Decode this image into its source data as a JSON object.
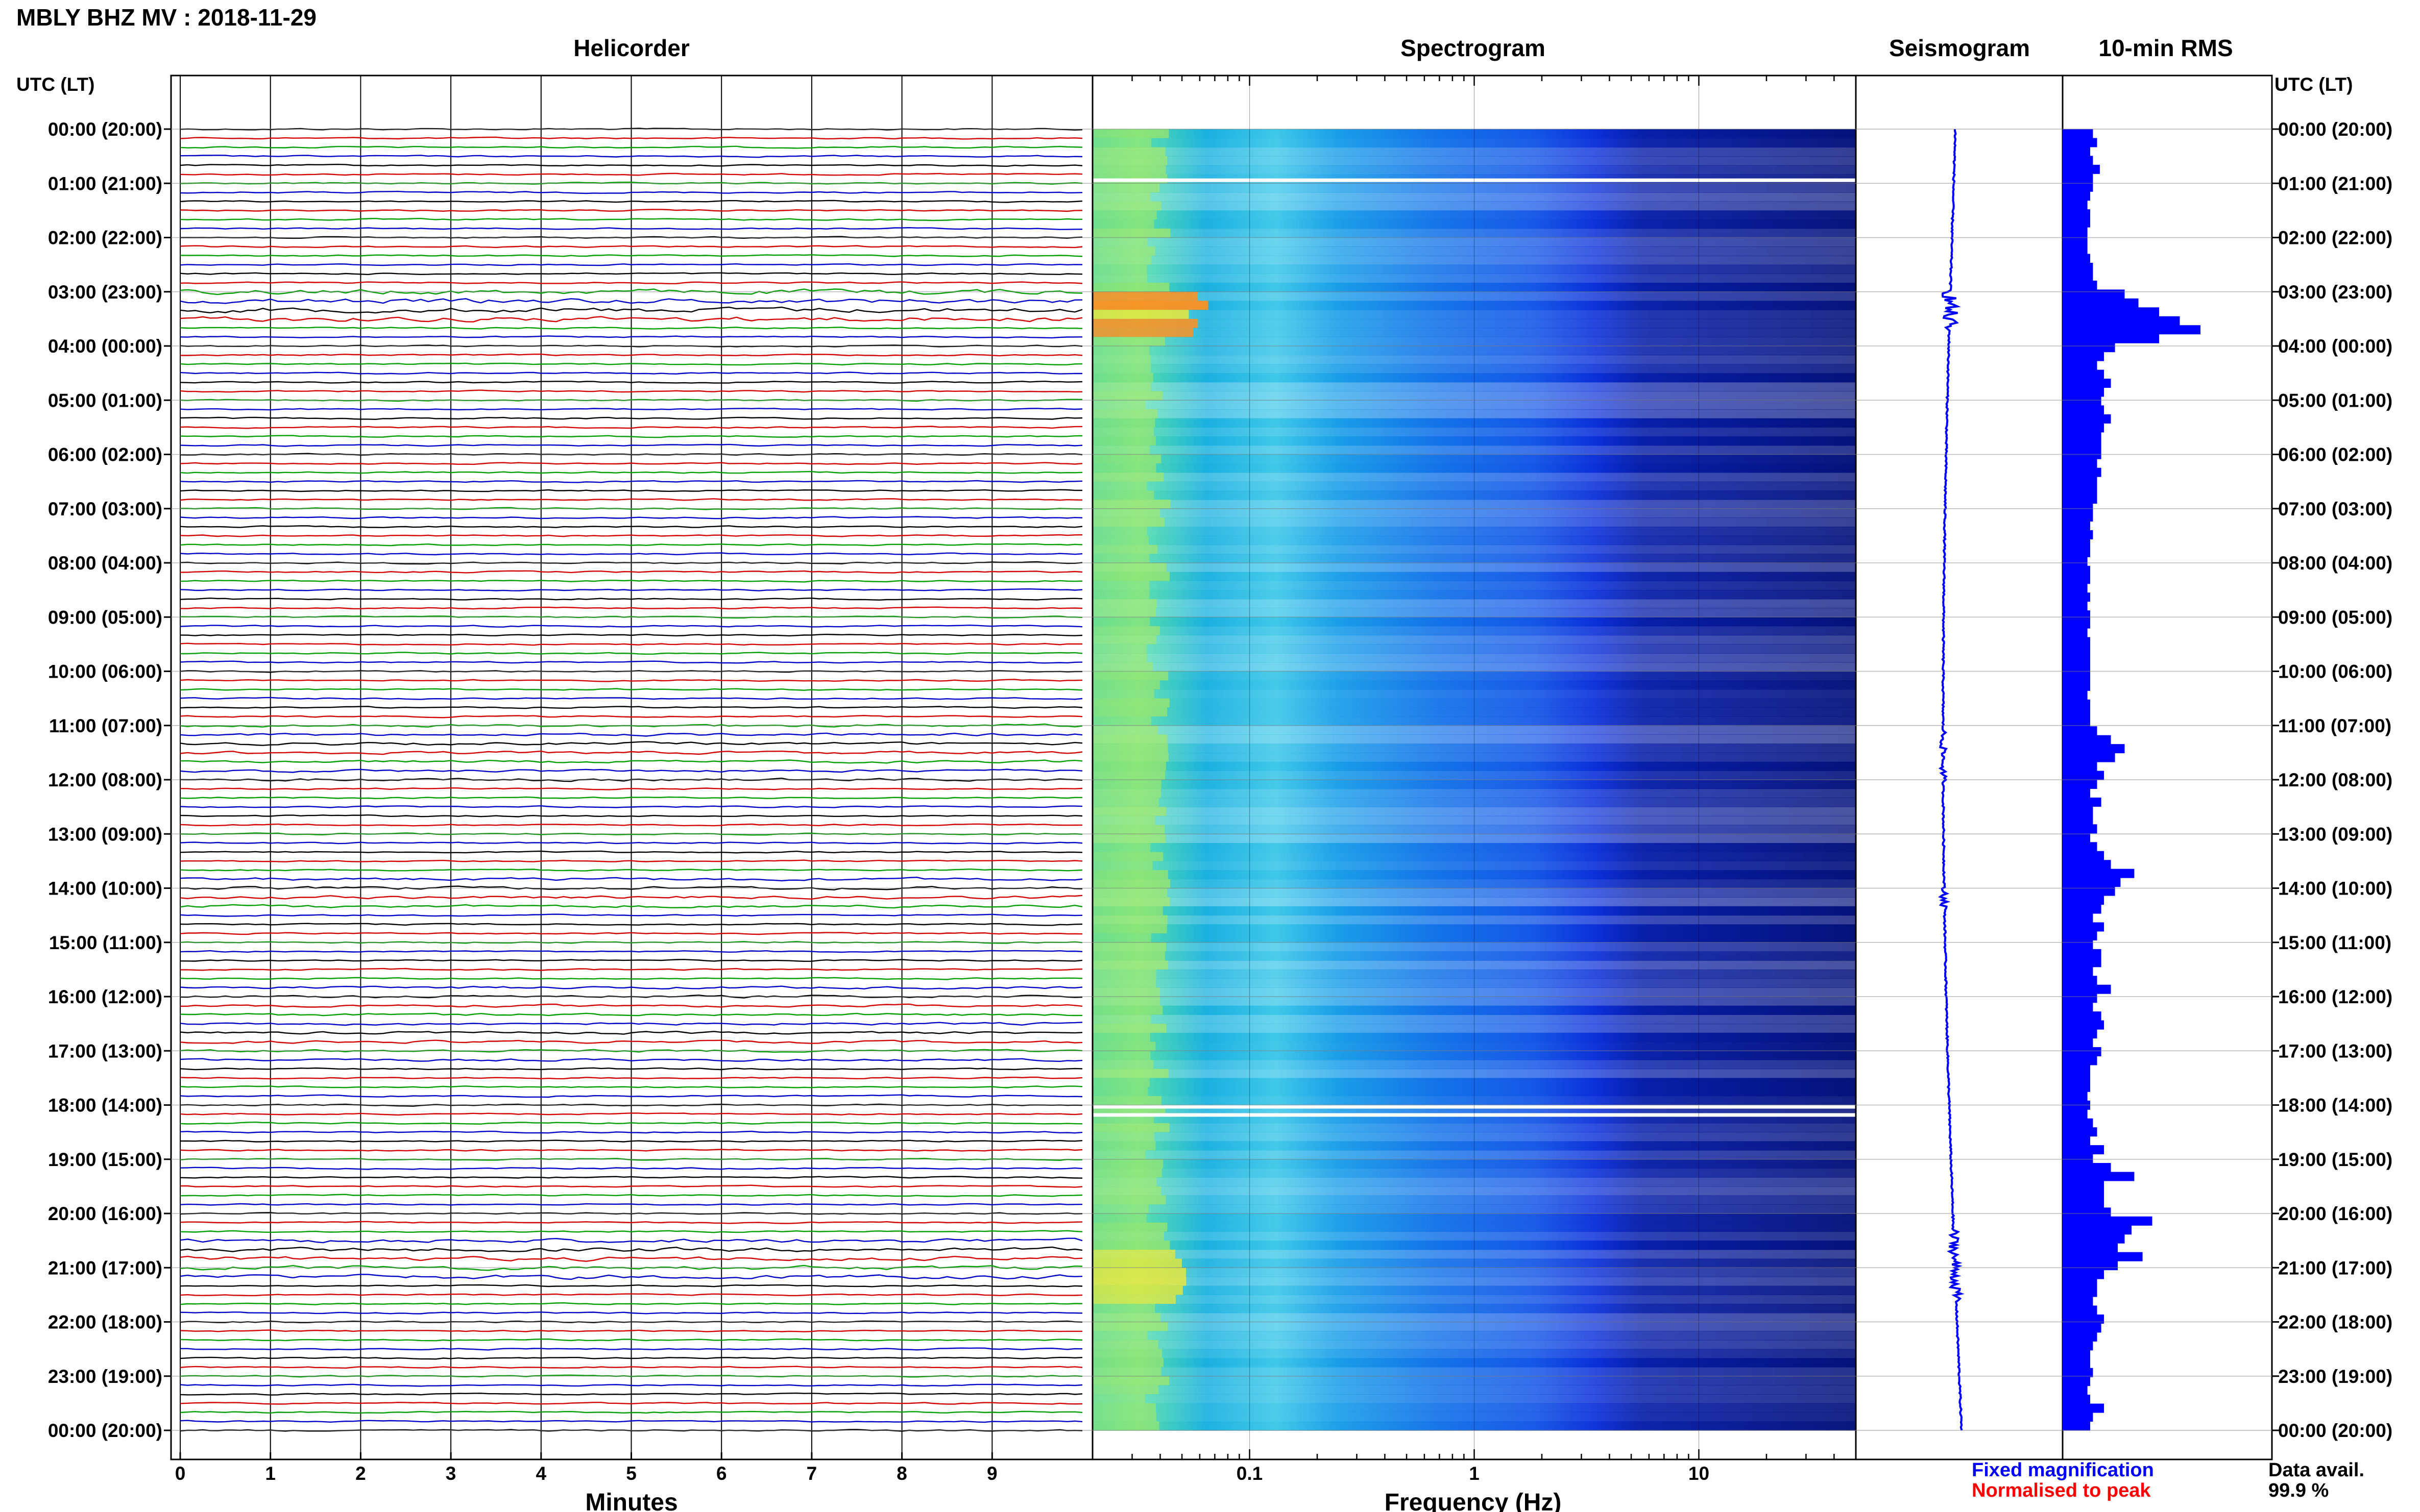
{
  "header": {
    "title": "MBLY BHZ MV : 2018-11-29",
    "utc_label_left": "UTC (LT)",
    "utc_label_right": "UTC (LT)"
  },
  "panels": {
    "helicorder_title": "Helicorder",
    "spectrogram_title": "Spectrogram",
    "seismogram_title": "Seismogram",
    "rms_title": "10-min RMS"
  },
  "footer": {
    "legend_fixed": "Fixed magnification",
    "legend_normalised": "Normalised to peak",
    "data_avail_label": "Data avail.",
    "data_avail_value": "99.9 %"
  },
  "colors": {
    "legend_fixed": "#0000ff",
    "legend_normalised": "#ff0000",
    "trace_cycle": [
      "#000000",
      "#d40000",
      "#00a000",
      "#0000c8"
    ],
    "rms_bar": "#0000ff",
    "seismogram": "#0000ff"
  },
  "chart_data": [
    {
      "type": "line",
      "name": "helicorder",
      "title": "Helicorder",
      "xlabel": "Minutes",
      "ylabel": "UTC (LT)",
      "x_ticks": [
        "0",
        "1",
        "2",
        "3",
        "4",
        "5",
        "6",
        "7",
        "8",
        "9"
      ],
      "xlim": [
        0,
        10
      ],
      "hour_labels": [
        "00:00 (20:00)",
        "01:00 (21:00)",
        "02:00 (22:00)",
        "03:00 (23:00)",
        "04:00 (00:00)",
        "05:00 (01:00)",
        "06:00 (02:00)",
        "07:00 (03:00)",
        "08:00 (04:00)",
        "09:00 (05:00)",
        "10:00 (06:00)",
        "11:00 (07:00)",
        "12:00 (08:00)",
        "13:00 (09:00)",
        "14:00 (10:00)",
        "15:00 (11:00)",
        "16:00 (12:00)",
        "17:00 (13:00)",
        "18:00 (14:00)",
        "19:00 (15:00)",
        "20:00 (16:00)",
        "21:00 (17:00)",
        "22:00 (18:00)",
        "23:00 (19:00)",
        "00:00 (20:00)"
      ],
      "traces_per_hour": 6,
      "grid": true
    },
    {
      "type": "heatmap",
      "name": "spectrogram",
      "title": "Spectrogram",
      "xlabel": "Frequency (Hz)",
      "x_scale": "log",
      "x_ticks": [
        "0.1",
        "1",
        "10"
      ],
      "xlim": [
        0.02,
        50
      ],
      "colormap": "jet",
      "data_gaps_utc": [
        "00:55",
        "18:00",
        "18:10"
      ]
    },
    {
      "type": "line",
      "name": "seismogram",
      "title": "Seismogram",
      "note": ""
    },
    {
      "type": "bar",
      "name": "rms",
      "title": "10-min RMS",
      "orientation": "horizontal",
      "interval_minutes": 10,
      "values": [
        0.22,
        0.25,
        0.2,
        0.22,
        0.27,
        0.22,
        0.22,
        0.2,
        0.18,
        0.2,
        0.2,
        0.18,
        0.18,
        0.18,
        0.2,
        0.22,
        0.22,
        0.25,
        0.45,
        0.55,
        0.7,
        0.85,
        1.0,
        0.7,
        0.38,
        0.3,
        0.25,
        0.3,
        0.35,
        0.3,
        0.28,
        0.3,
        0.35,
        0.3,
        0.28,
        0.28,
        0.28,
        0.25,
        0.28,
        0.25,
        0.25,
        0.25,
        0.22,
        0.22,
        0.2,
        0.22,
        0.2,
        0.2,
        0.18,
        0.2,
        0.2,
        0.18,
        0.2,
        0.18,
        0.2,
        0.2,
        0.18,
        0.2,
        0.2,
        0.2,
        0.2,
        0.2,
        0.2,
        0.18,
        0.2,
        0.2,
        0.2,
        0.25,
        0.35,
        0.45,
        0.38,
        0.25,
        0.3,
        0.25,
        0.2,
        0.28,
        0.22,
        0.22,
        0.25,
        0.2,
        0.25,
        0.3,
        0.35,
        0.52,
        0.42,
        0.38,
        0.3,
        0.28,
        0.22,
        0.3,
        0.25,
        0.22,
        0.28,
        0.28,
        0.22,
        0.25,
        0.35,
        0.25,
        0.22,
        0.28,
        0.3,
        0.25,
        0.22,
        0.28,
        0.25,
        0.2,
        0.2,
        0.2,
        0.18,
        0.2,
        0.18,
        0.22,
        0.25,
        0.2,
        0.3,
        0.22,
        0.35,
        0.52,
        0.3,
        0.3,
        0.3,
        0.35,
        0.65,
        0.5,
        0.45,
        0.4,
        0.58,
        0.4,
        0.3,
        0.25,
        0.25,
        0.22,
        0.25,
        0.3,
        0.28,
        0.25,
        0.22,
        0.2,
        0.2,
        0.22,
        0.2,
        0.18,
        0.2,
        0.3,
        0.22,
        0.2
      ]
    }
  ]
}
